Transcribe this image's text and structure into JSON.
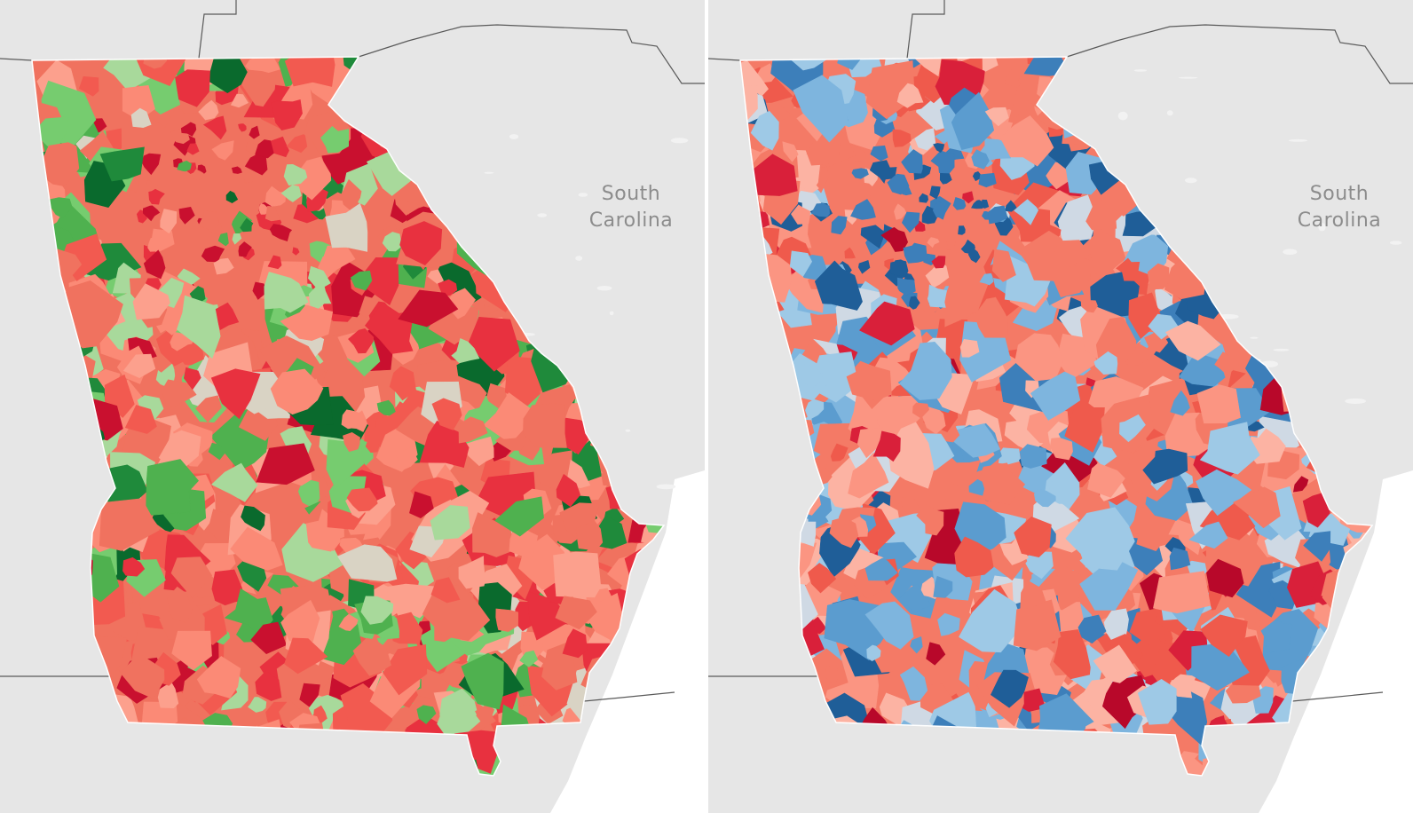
{
  "maps": [
    {
      "id": "left",
      "label_region": {
        "line1": "South",
        "line2": "Carolina"
      },
      "palette": [
        "#f0725f",
        "#fb8a76",
        "#fca08d",
        "#f25a50",
        "#e8313f",
        "#c9102f",
        "#a8d99b",
        "#76cc6f",
        "#4fb14f",
        "#1f8a3b",
        "#0a6a2d",
        "#d9d3c4"
      ],
      "palette_weights": [
        22,
        14,
        8,
        10,
        9,
        5,
        7,
        6,
        5,
        3,
        2,
        3
      ]
    },
    {
      "id": "right",
      "label_region": {
        "line1": "South",
        "line2": "Carolina"
      },
      "palette": [
        "#f47a66",
        "#fb9582",
        "#fcb3a3",
        "#ef5a4c",
        "#d9203a",
        "#b8082a",
        "#9ec9e6",
        "#7eb5de",
        "#5b9ccf",
        "#3d7fba",
        "#1f5e98",
        "#cfd9e4"
      ],
      "palette_weights": [
        20,
        14,
        8,
        8,
        3,
        2,
        10,
        9,
        7,
        5,
        3,
        4
      ]
    }
  ],
  "colors": {
    "background": "#e6e6e6",
    "water": "#ffffff",
    "border": "#5a5a5a",
    "label": "#8c8c8c"
  }
}
